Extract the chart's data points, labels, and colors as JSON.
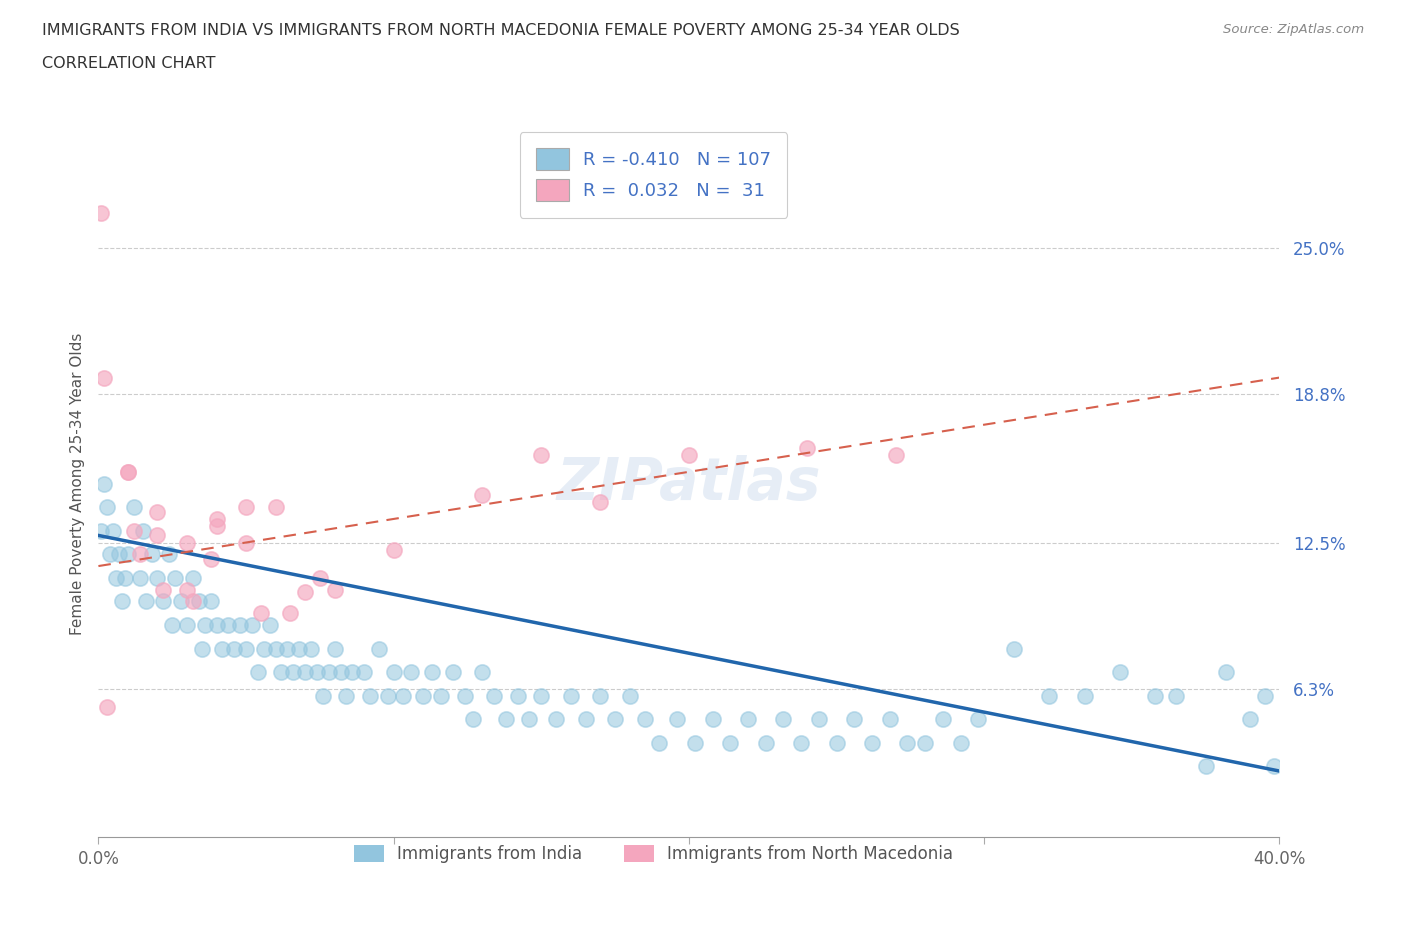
{
  "title_line1": "IMMIGRANTS FROM INDIA VS IMMIGRANTS FROM NORTH MACEDONIA FEMALE POVERTY AMONG 25-34 YEAR OLDS",
  "title_line2": "CORRELATION CHART",
  "source": "Source: ZipAtlas.com",
  "ylabel": "Female Poverty Among 25-34 Year Olds",
  "xlim": [
    0.0,
    0.4
  ],
  "ylim": [
    0.0,
    0.3
  ],
  "yticks": [
    0.0,
    0.063,
    0.125,
    0.188,
    0.25
  ],
  "ytick_labels": [
    "",
    "6.3%",
    "12.5%",
    "18.8%",
    "25.0%"
  ],
  "xticks": [
    0.0,
    0.1,
    0.2,
    0.3,
    0.4
  ],
  "xtick_labels": [
    "0.0%",
    "",
    "",
    "",
    "40.0%"
  ],
  "legend_india_R": "-0.410",
  "legend_india_N": "107",
  "legend_mac_R": "0.032",
  "legend_mac_N": "31",
  "india_color": "#92c5de",
  "mac_color": "#f4a6be",
  "india_line_color": "#2166ac",
  "mac_line_color": "#d6604d",
  "background_color": "#ffffff",
  "india_scatter_x": [
    0.001,
    0.002,
    0.003,
    0.004,
    0.005,
    0.006,
    0.007,
    0.008,
    0.009,
    0.01,
    0.012,
    0.014,
    0.015,
    0.016,
    0.018,
    0.02,
    0.022,
    0.024,
    0.025,
    0.026,
    0.028,
    0.03,
    0.032,
    0.034,
    0.035,
    0.036,
    0.038,
    0.04,
    0.042,
    0.044,
    0.046,
    0.048,
    0.05,
    0.052,
    0.054,
    0.056,
    0.058,
    0.06,
    0.062,
    0.064,
    0.066,
    0.068,
    0.07,
    0.072,
    0.074,
    0.076,
    0.078,
    0.08,
    0.082,
    0.084,
    0.086,
    0.09,
    0.092,
    0.095,
    0.098,
    0.1,
    0.103,
    0.106,
    0.11,
    0.113,
    0.116,
    0.12,
    0.124,
    0.127,
    0.13,
    0.134,
    0.138,
    0.142,
    0.146,
    0.15,
    0.155,
    0.16,
    0.165,
    0.17,
    0.175,
    0.18,
    0.185,
    0.19,
    0.196,
    0.202,
    0.208,
    0.214,
    0.22,
    0.226,
    0.232,
    0.238,
    0.244,
    0.25,
    0.256,
    0.262,
    0.268,
    0.274,
    0.28,
    0.286,
    0.292,
    0.298,
    0.31,
    0.322,
    0.334,
    0.346,
    0.358,
    0.365,
    0.375,
    0.382,
    0.39,
    0.395,
    0.398
  ],
  "india_scatter_y": [
    0.13,
    0.15,
    0.14,
    0.12,
    0.13,
    0.11,
    0.12,
    0.1,
    0.11,
    0.12,
    0.14,
    0.11,
    0.13,
    0.1,
    0.12,
    0.11,
    0.1,
    0.12,
    0.09,
    0.11,
    0.1,
    0.09,
    0.11,
    0.1,
    0.08,
    0.09,
    0.1,
    0.09,
    0.08,
    0.09,
    0.08,
    0.09,
    0.08,
    0.09,
    0.07,
    0.08,
    0.09,
    0.08,
    0.07,
    0.08,
    0.07,
    0.08,
    0.07,
    0.08,
    0.07,
    0.06,
    0.07,
    0.08,
    0.07,
    0.06,
    0.07,
    0.07,
    0.06,
    0.08,
    0.06,
    0.07,
    0.06,
    0.07,
    0.06,
    0.07,
    0.06,
    0.07,
    0.06,
    0.05,
    0.07,
    0.06,
    0.05,
    0.06,
    0.05,
    0.06,
    0.05,
    0.06,
    0.05,
    0.06,
    0.05,
    0.06,
    0.05,
    0.04,
    0.05,
    0.04,
    0.05,
    0.04,
    0.05,
    0.04,
    0.05,
    0.04,
    0.05,
    0.04,
    0.05,
    0.04,
    0.05,
    0.04,
    0.04,
    0.05,
    0.04,
    0.05,
    0.08,
    0.06,
    0.06,
    0.07,
    0.06,
    0.06,
    0.03,
    0.07,
    0.05,
    0.06,
    0.03
  ],
  "mac_scatter_x": [
    0.001,
    0.002,
    0.003,
    0.01,
    0.012,
    0.014,
    0.02,
    0.022,
    0.03,
    0.032,
    0.04,
    0.05,
    0.06,
    0.065,
    0.07,
    0.075,
    0.08,
    0.1,
    0.05,
    0.04,
    0.03,
    0.02,
    0.01,
    0.13,
    0.15,
    0.17,
    0.2,
    0.24,
    0.27,
    0.038,
    0.055
  ],
  "mac_scatter_y": [
    0.265,
    0.195,
    0.055,
    0.155,
    0.13,
    0.12,
    0.138,
    0.105,
    0.125,
    0.1,
    0.132,
    0.14,
    0.14,
    0.095,
    0.104,
    0.11,
    0.105,
    0.122,
    0.125,
    0.135,
    0.105,
    0.128,
    0.155,
    0.145,
    0.162,
    0.142,
    0.162,
    0.165,
    0.162,
    0.118,
    0.095
  ]
}
